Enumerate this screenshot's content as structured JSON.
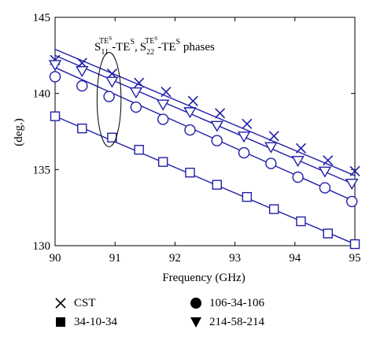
{
  "chart_data": {
    "type": "line",
    "title": "",
    "xlabel": "Frequency (GHz)",
    "ylabel": "(deg.)",
    "xlim": [
      90,
      95
    ],
    "ylim": [
      130,
      145
    ],
    "xticks": [
      90,
      91,
      92,
      93,
      94,
      95
    ],
    "yticks": [
      130,
      135,
      140,
      145
    ],
    "xtick_labels": [
      "90",
      "91",
      "92",
      "93",
      "94",
      "95"
    ],
    "ytick_labels": [
      "130",
      "135",
      "140",
      "145"
    ],
    "grid": false,
    "legend_position": "below",
    "annotation": {
      "text_parts": {
        "s1": "S",
        "s1_sub": "11",
        "s1_sup": "TE",
        "s1_supsup": "S",
        "mid": "-TE",
        "mid_sup": "S",
        "sep": ",",
        "s2": "S",
        "s2_sub": "22",
        "s2_sup": "TE",
        "s2_supsup": "S",
        "mid2": "-TE",
        "mid2_sup": "S",
        "tail": " phases"
      },
      "ellipse_center": [
        90.9,
        139.6
      ],
      "ellipse_half_width": 0.2,
      "ellipse_half_height": 3.1
    },
    "series": [
      {
        "name": "CST",
        "marker": "x",
        "line_x": [
          90,
          95
        ],
        "line_y": [
          142.9,
          134.6
        ],
        "marker_x": [
          90.0,
          90.45,
          90.95,
          91.4,
          91.85,
          92.3,
          92.75,
          93.2,
          93.65,
          94.1,
          94.55,
          95.0
        ],
        "marker_y": [
          142.2,
          142.0,
          141.3,
          140.7,
          140.1,
          139.5,
          138.7,
          138.0,
          137.2,
          136.4,
          135.6,
          134.9
        ]
      },
      {
        "name": "106-34-106",
        "marker": "circle",
        "line_x": [
          90,
          95
        ],
        "line_y": [
          141.7,
          132.9
        ],
        "marker_x": [
          90.0,
          90.45,
          90.9,
          91.35,
          91.8,
          92.25,
          92.7,
          93.15,
          93.6,
          94.05,
          94.5,
          94.95
        ],
        "marker_y": [
          141.1,
          140.5,
          139.8,
          139.1,
          138.3,
          137.6,
          136.9,
          136.1,
          135.4,
          134.5,
          133.8,
          132.9
        ]
      },
      {
        "name": "34-10-34",
        "marker": "square",
        "line_x": [
          90,
          95
        ],
        "line_y": [
          138.5,
          130.1
        ],
        "marker_x": [
          90.0,
          90.45,
          90.95,
          91.4,
          91.8,
          92.25,
          92.7,
          93.2,
          93.65,
          94.1,
          94.55,
          95.0
        ],
        "marker_y": [
          138.5,
          137.7,
          137.1,
          136.3,
          135.5,
          134.8,
          134.0,
          133.2,
          132.4,
          131.6,
          130.8,
          130.1
        ]
      },
      {
        "name": "214-58-214",
        "marker": "triangle-down",
        "line_x": [
          90,
          95
        ],
        "line_y": [
          142.5,
          134.0
        ],
        "marker_x": [
          90.0,
          90.45,
          90.95,
          91.35,
          91.8,
          92.25,
          92.7,
          93.15,
          93.6,
          94.05,
          94.5,
          94.95
        ],
        "marker_y": [
          141.9,
          141.5,
          140.8,
          140.1,
          139.3,
          138.8,
          137.9,
          137.2,
          136.5,
          135.6,
          134.9,
          134.1
        ]
      }
    ],
    "colors": {
      "line": "#1f1fa8",
      "marker_stroke": "#1f1fa8",
      "marker_fill": "#ffffff",
      "axis": "#000000",
      "annotation": "#000000"
    }
  },
  "legend": {
    "items": [
      {
        "label": "CST",
        "marker": "x"
      },
      {
        "label": "34-10-34",
        "marker": "square"
      },
      {
        "label": "106-34-106",
        "marker": "circle"
      },
      {
        "label": "214-58-214",
        "marker": "triangle-down"
      }
    ]
  }
}
